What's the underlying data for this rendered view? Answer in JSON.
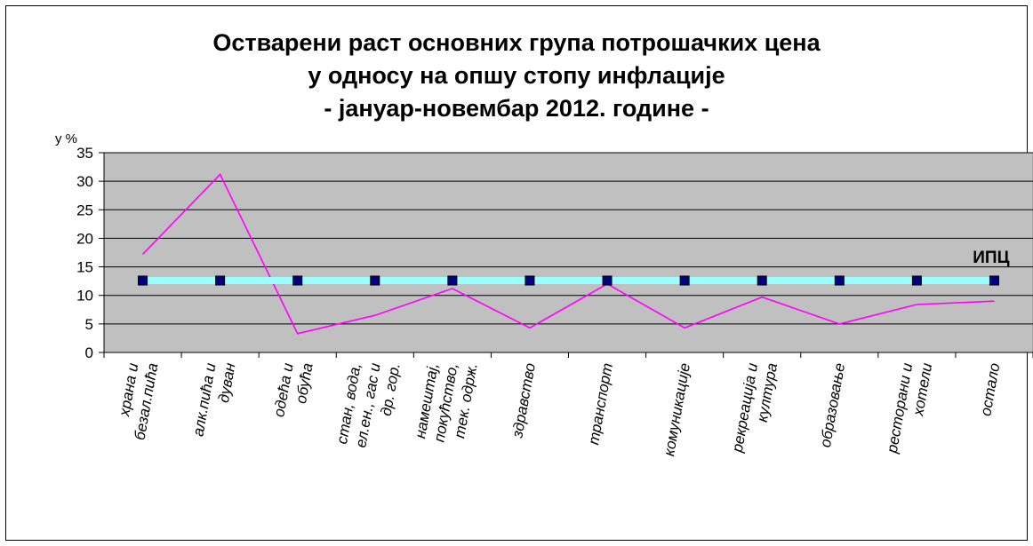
{
  "chart_data": {
    "type": "line",
    "title_lines": [
      "Остварени раст основних група потрошачких цена",
      "у односу на опшу стопу инфлације",
      "- јануар-новембар 2012. године -"
    ],
    "ylabel": "у %",
    "ylim": [
      0,
      35
    ],
    "yticks": [
      0,
      5,
      10,
      15,
      20,
      25,
      30,
      35
    ],
    "grid": true,
    "categories": [
      [
        "храна и",
        "безал.пића"
      ],
      [
        "алк.пића и",
        "дуван"
      ],
      [
        "одећа и",
        "обућа"
      ],
      [
        "стан, вода,",
        "ел.ен., гас и",
        "др. гор."
      ],
      [
        "намештај,",
        "покућство,",
        "тек. одрж."
      ],
      [
        "здравство"
      ],
      [
        "транспорт"
      ],
      [
        "комуникације"
      ],
      [
        "рекреација и",
        "култура"
      ],
      [
        "образовање"
      ],
      [
        "ресторани и",
        "хотели"
      ],
      [
        "остало"
      ]
    ],
    "series": [
      {
        "values": [
          17.2,
          31.2,
          3.3,
          6.5,
          11.2,
          4.3,
          12.0,
          4.3,
          9.7,
          5.0,
          8.4,
          9.0
        ],
        "color": "#ff00ff"
      },
      {
        "name": "ИПЦ",
        "values": [
          12.6,
          12.6,
          12.6,
          12.6,
          12.6,
          12.6,
          12.6,
          12.6,
          12.6,
          12.6,
          12.6,
          12.6
        ],
        "color": "#99ffff",
        "marker_color": "#000080"
      }
    ],
    "plot_background": "#c0c0c0"
  }
}
